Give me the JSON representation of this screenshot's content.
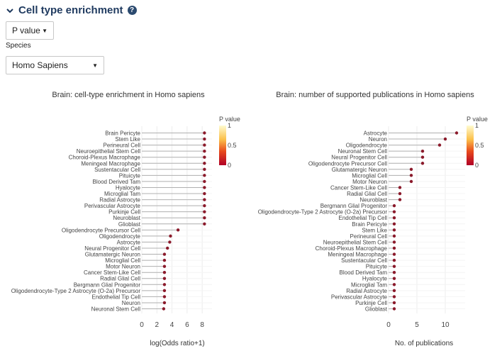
{
  "header": {
    "title": "Cell type enrichment",
    "help": "?"
  },
  "metric_select": {
    "value": "P value"
  },
  "species": {
    "label": "Species",
    "value": "Homo Sapiens"
  },
  "colors": {
    "lollipop": "#8b1a2b",
    "stem": "#b0b0b0",
    "grid": "#ececec"
  },
  "legend_title": "P value",
  "chart_data": [
    {
      "type": "lollipop",
      "title": "Brain: cell-type enrichment in Homo sapiens",
      "xlabel": "log(Odds ratio+1)",
      "xlim": [
        0,
        9.3
      ],
      "xticks": [
        0,
        2,
        4,
        6,
        8
      ],
      "legend": {
        "title": "P value",
        "ticks": [
          "1",
          "0.5",
          "0"
        ]
      },
      "categories": [
        "Brain Pericyte",
        "Stem Like",
        "Perineural Cell",
        "Neuroepithelial Stem Cell",
        "Choroid-Plexus Macrophage",
        "Meningeal Macrophage",
        "Sustentacular Cell",
        "Pituicyte",
        "Blood Derived Tam",
        "Hyalocyte",
        "Microglial Tam",
        "Radial Astrocyte",
        "Perivascular Astrocyte",
        "Purkinje Cell",
        "Neuroblast",
        "Glioblast",
        "Oligodendrocyte Precursor Cell",
        "Oligodendrocyte",
        "Astrocyte",
        "Neural Progenitor Cell",
        "Glutamatergic Neuron",
        "Microglial Cell",
        "Motor Neuron",
        "Cancer Stem-Like Cell",
        "Radial Glial Cell",
        "Bergmann Glial Progenitor",
        "Oligodendrocyte-Type 2 Astrocyte (O-2a) Precursor",
        "Endothelial Tip Cell",
        "Neuron",
        "Neuronal Stem Cell"
      ],
      "values": [
        8.3,
        8.3,
        8.3,
        8.3,
        8.3,
        8.3,
        8.3,
        8.3,
        8.3,
        8.3,
        8.3,
        8.3,
        8.3,
        8.3,
        8.3,
        8.3,
        4.8,
        3.8,
        3.7,
        3.4,
        3.0,
        3.0,
        3.0,
        3.0,
        3.0,
        3.0,
        3.0,
        3.0,
        3.0,
        2.9
      ]
    },
    {
      "type": "lollipop",
      "title": "Brain: number of supported publications in Homo sapiens",
      "xlabel": "No. of publications",
      "xlim": [
        0,
        13.5
      ],
      "xticks": [
        0,
        5,
        10
      ],
      "legend": {
        "title": "P value",
        "ticks": [
          "1",
          "0.5",
          "0"
        ]
      },
      "categories": [
        "Astrocyte",
        "Neuron",
        "Oligodendrocyte",
        "Neuronal Stem Cell",
        "Neural Progenitor Cell",
        "Oligodendrocyte Precursor Cell",
        "Glutamatergic Neuron",
        "Microglial Cell",
        "Motor Neuron",
        "Cancer Stem-Like Cell",
        "Radial Glial Cell",
        "Neuroblast",
        "Bergmann Glial Progenitor",
        "Oligodendrocyte-Type 2 Astrocyte (O-2a) Precursor",
        "Endothelial Tip Cell",
        "Brain Pericyte",
        "Stem Like",
        "Perineural Cell",
        "Neuroepithelial Stem Cell",
        "Choroid-Plexus Macrophage",
        "Meningeal Macrophage",
        "Sustentacular Cell",
        "Pituicyte",
        "Blood Derived Tam",
        "Hyalocyte",
        "Microglial Tam",
        "Radial Astrocyte",
        "Perivascular Astrocyte",
        "Purkinje Cell",
        "Glioblast"
      ],
      "values": [
        12,
        10,
        9,
        6,
        6,
        6,
        4,
        4,
        4,
        2,
        2,
        2,
        1,
        1,
        1,
        1,
        1,
        1,
        1,
        1,
        1,
        1,
        1,
        1,
        1,
        1,
        1,
        1,
        1,
        1
      ]
    }
  ]
}
